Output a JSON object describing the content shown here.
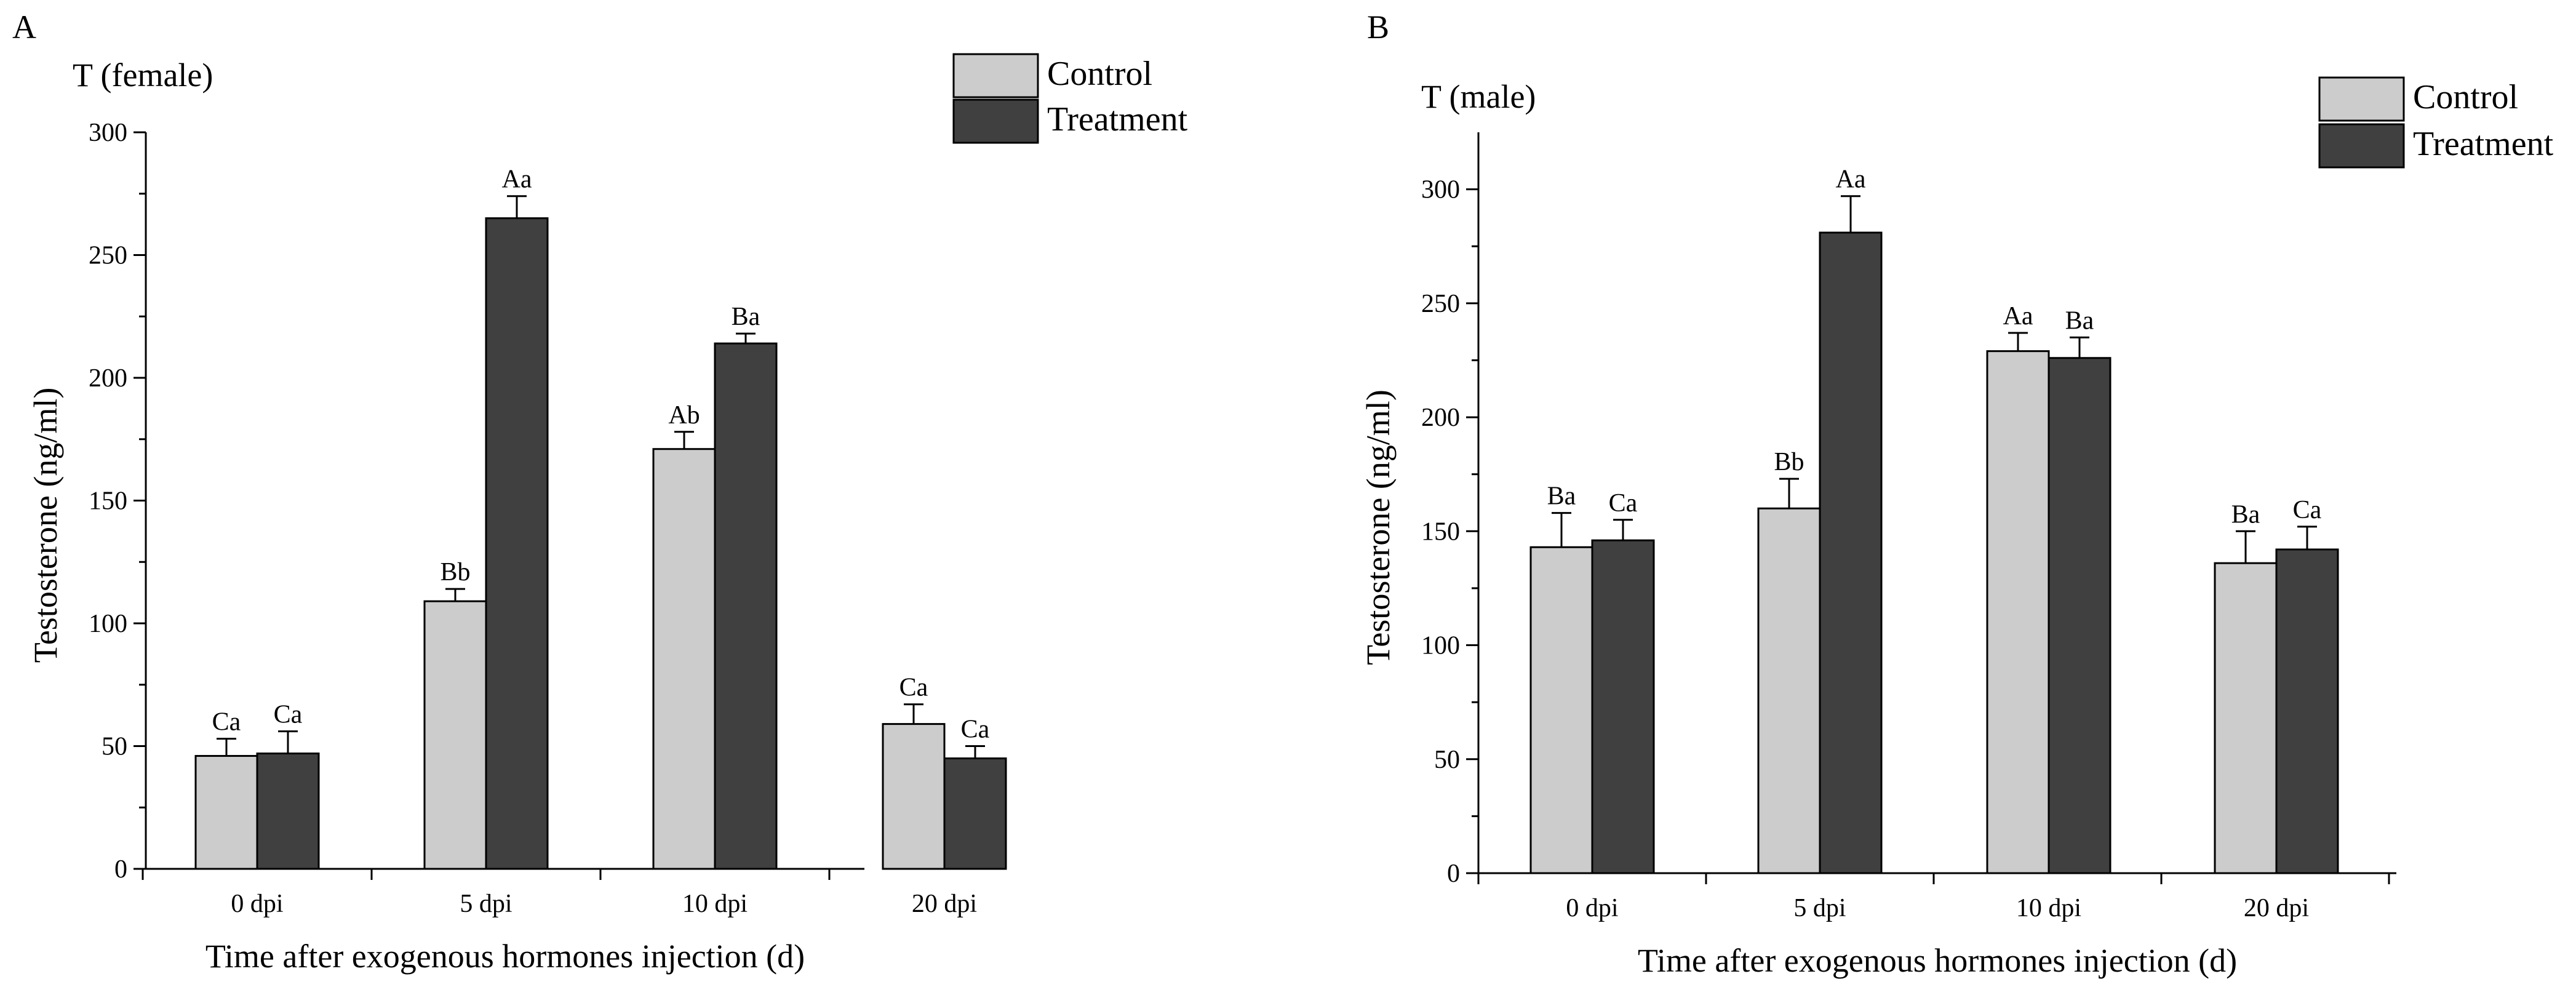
{
  "colors": {
    "control": "#cccccc",
    "treatment": "#404040",
    "outline": "#000000",
    "background": "#ffffff"
  },
  "chart_data": [
    {
      "type": "bar",
      "panel_label": "A",
      "title": "T (female)",
      "xlabel": "Time after exogenous hormones injection (d)",
      "ylabel": "Testosterone (ng/ml)",
      "ylim": [
        0,
        300
      ],
      "yticks": [
        0,
        50,
        100,
        150,
        200,
        250,
        300
      ],
      "categories": [
        "0 dpi",
        "5 dpi",
        "10 dpi",
        "20 dpi"
      ],
      "legend_position": "top-right",
      "series": [
        {
          "name": "Control",
          "color_key": "control",
          "values": [
            46,
            109,
            171,
            59
          ],
          "errors": [
            7,
            5,
            7,
            8
          ],
          "labels": [
            "Ca",
            "Bb",
            "Ab",
            "Ca"
          ]
        },
        {
          "name": "Treatment",
          "color_key": "treatment",
          "values": [
            47,
            265,
            214,
            45
          ],
          "errors": [
            9,
            9,
            4,
            5
          ],
          "labels": [
            "Ca",
            "Aa",
            "Ba",
            "Ca"
          ]
        }
      ]
    },
    {
      "type": "bar",
      "panel_label": "B",
      "title": "T (male)",
      "xlabel": "Time after exogenous hormones injection (d)",
      "ylabel": "Testosterone (ng/ml)",
      "ylim": [
        0,
        325
      ],
      "yticks": [
        0,
        50,
        100,
        150,
        200,
        250,
        300
      ],
      "categories": [
        "0 dpi",
        "5 dpi",
        "10 dpi",
        "20 dpi"
      ],
      "legend_position": "top-right",
      "series": [
        {
          "name": "Control",
          "color_key": "control",
          "values": [
            143,
            160,
            229,
            136
          ],
          "errors": [
            15,
            13,
            8,
            14
          ],
          "labels": [
            "Ba",
            "Bb",
            "Aa",
            "Ba"
          ]
        },
        {
          "name": "Treatment",
          "color_key": "treatment",
          "values": [
            146,
            281,
            226,
            142
          ],
          "errors": [
            9,
            16,
            9,
            10
          ],
          "labels": [
            "Ca",
            "Aa",
            "Ba",
            "Ca"
          ]
        }
      ]
    }
  ]
}
